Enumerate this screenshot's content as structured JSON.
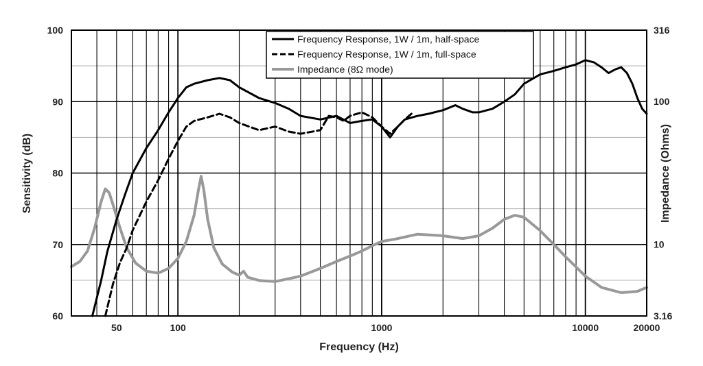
{
  "chart_data": {
    "type": "line",
    "xlabel": "Frequency (Hz)",
    "ylabel": "Sensitivity (dB)",
    "y2label": "Impedance (Ohms)",
    "xscale": "log",
    "xlim": [
      30,
      20000
    ],
    "ylim": [
      60,
      100
    ],
    "y2scale": "log",
    "y2lim": [
      3.16,
      316
    ],
    "grid": true,
    "legend_position": "top-center",
    "x_ticks": [
      "50",
      "100",
      "1000",
      "10000",
      "20000"
    ],
    "y_ticks": [
      "60",
      "70",
      "80",
      "90",
      "100"
    ],
    "y2_ticks": [
      "3.16",
      "10",
      "100",
      "316"
    ],
    "series": [
      {
        "name": "Frequency Response, 1W / 1m, half-space",
        "axis": "left",
        "style": "solid",
        "color": "#000000",
        "x": [
          38,
          42,
          45,
          50,
          55,
          60,
          70,
          80,
          90,
          100,
          110,
          120,
          140,
          160,
          180,
          200,
          250,
          300,
          350,
          400,
          500,
          600,
          700,
          800,
          900,
          1000,
          1100,
          1200,
          1300,
          1500,
          1700,
          2000,
          2300,
          2500,
          2800,
          3000,
          3500,
          4000,
          4500,
          5000,
          6000,
          7000,
          8000,
          9000,
          10000,
          11000,
          12000,
          13000,
          14000,
          15000,
          16000,
          17000,
          18000,
          19000,
          20000
        ],
        "y": [
          60,
          65,
          69,
          73.5,
          77,
          80,
          83.5,
          86,
          88.5,
          90.5,
          92,
          92.5,
          93,
          93.3,
          93,
          92,
          90.5,
          89.8,
          89,
          88,
          87.5,
          88,
          87,
          87.3,
          87.5,
          86.5,
          85,
          86.5,
          87.5,
          88,
          88.3,
          88.8,
          89.5,
          89,
          88.5,
          88.5,
          89,
          90,
          91,
          92.5,
          93.8,
          94.3,
          94.8,
          95.2,
          95.8,
          95.5,
          94.8,
          94,
          94.5,
          94.8,
          94,
          92.5,
          90.5,
          89,
          88.3
        ]
      },
      {
        "name": "Frequency Response, 1W / 1m, full-space",
        "axis": "left",
        "style": "dashed",
        "color": "#000000",
        "x": [
          44,
          48,
          52,
          56,
          60,
          70,
          80,
          90,
          100,
          110,
          120,
          140,
          160,
          180,
          200,
          250,
          300,
          350,
          400,
          500,
          550,
          600,
          650,
          700,
          800,
          900,
          1000,
          1100,
          1200,
          1300,
          1400
        ],
        "y": [
          60,
          64.5,
          67.5,
          69.5,
          72,
          76,
          79,
          82,
          84.5,
          86.5,
          87.3,
          87.8,
          88.3,
          87.8,
          87,
          86,
          86.5,
          85.8,
          85.5,
          86,
          88,
          87.8,
          87.3,
          88,
          88.5,
          87.8,
          86.5,
          85.5,
          86.5,
          87.5,
          88.3
        ]
      },
      {
        "name": "Impedance (8Ω mode)",
        "axis": "right",
        "style": "solid",
        "color": "#999999",
        "x": [
          30,
          33,
          36,
          39,
          42,
          44,
          46,
          48,
          52,
          56,
          62,
          70,
          80,
          90,
          100,
          110,
          120,
          126,
          130,
          134,
          140,
          150,
          165,
          185,
          200,
          210,
          220,
          250,
          300,
          400,
          500,
          600,
          700,
          800,
          900,
          1000,
          1200,
          1500,
          2000,
          2500,
          3000,
          3500,
          4000,
          4500,
          5000,
          6000,
          7000,
          8000,
          10000,
          12000,
          15000,
          18000,
          20000
        ],
        "y": [
          7,
          7.6,
          9,
          13,
          20,
          24.5,
          23,
          19,
          13,
          9.5,
          7.4,
          6.5,
          6.3,
          6.8,
          8,
          10.5,
          16,
          24,
          30,
          24,
          15,
          9.5,
          7.3,
          6.4,
          6.1,
          6.5,
          5.9,
          5.6,
          5.5,
          6,
          6.8,
          7.6,
          8.3,
          9,
          9.8,
          10.5,
          11,
          11.8,
          11.5,
          11,
          11.5,
          13,
          15,
          16,
          15.5,
          12.5,
          10,
          8.2,
          6,
          5,
          4.6,
          4.7,
          5
        ]
      }
    ]
  }
}
